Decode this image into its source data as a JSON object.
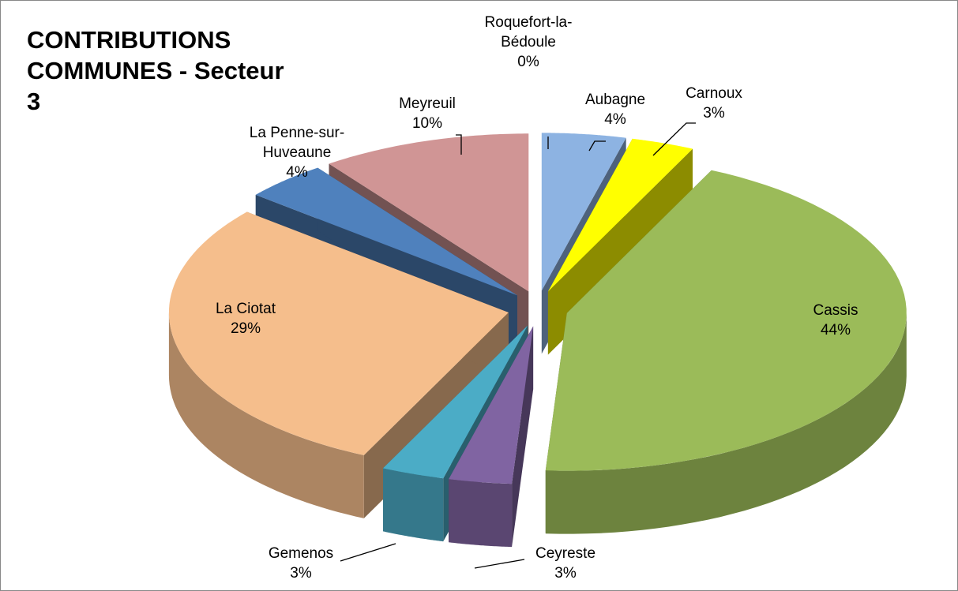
{
  "chart_data": {
    "type": "pie3d",
    "title": "CONTRIBUTIONS COMMUNES - Secteur 3",
    "categories": [
      "Aubagne",
      "Carnoux",
      "Cassis",
      "Ceyreste",
      "Gemenos",
      "La Ciotat",
      "La Penne-sur-Huveaune",
      "Meyreuil",
      "Roquefort-la-Bédoule"
    ],
    "values": [
      4,
      3,
      44,
      3,
      3,
      29,
      4,
      10,
      0
    ],
    "value_labels": [
      "4%",
      "3%",
      "44%",
      "3%",
      "3%",
      "29%",
      "4%",
      "10%",
      "0%"
    ],
    "colors": [
      "#8db3e2",
      "#ffff00",
      "#9bbb59",
      "#8064a2",
      "#4bacc6",
      "#f5be8c",
      "#4f81bd",
      "#d09595",
      "#c0504d"
    ]
  }
}
